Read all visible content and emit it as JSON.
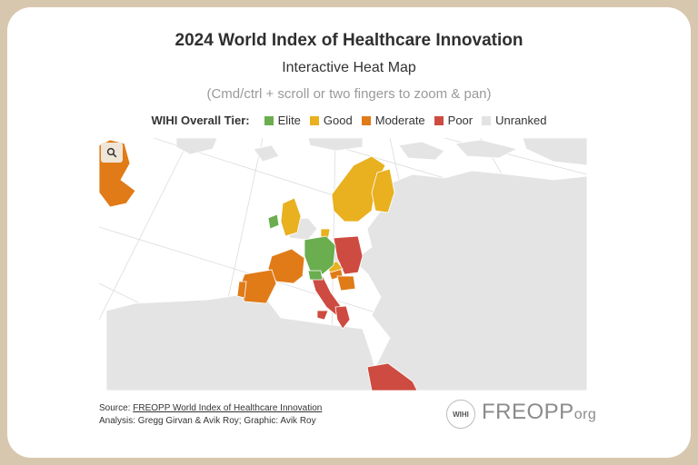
{
  "header": {
    "title": "2024 World Index of Healthcare Innovation",
    "subtitle": "Interactive Heat Map",
    "hint": "(Cmd/ctrl + scroll or two fingers to zoom & pan)"
  },
  "legend": {
    "title": "WIHI Overall Tier:",
    "items": [
      {
        "label": "Elite",
        "color": "#6aae4f"
      },
      {
        "label": "Good",
        "color": "#e9b01f"
      },
      {
        "label": "Moderate",
        "color": "#e07b18"
      },
      {
        "label": "Poor",
        "color": "#cd4b40"
      },
      {
        "label": "Unranked",
        "color": "#e3e3e3"
      }
    ]
  },
  "map": {
    "zoom_icon": "search-icon"
  },
  "footer": {
    "source_prefix": "Source: ",
    "source_link": "FREOPP World Index of Healthcare Innovation",
    "credits": "Analysis: Gregg Girvan & Avik Roy; Graphic: Avik Roy",
    "wihi_logo": "WIHI",
    "freopp_logo": "FREOPP",
    "freopp_suffix": "org"
  }
}
